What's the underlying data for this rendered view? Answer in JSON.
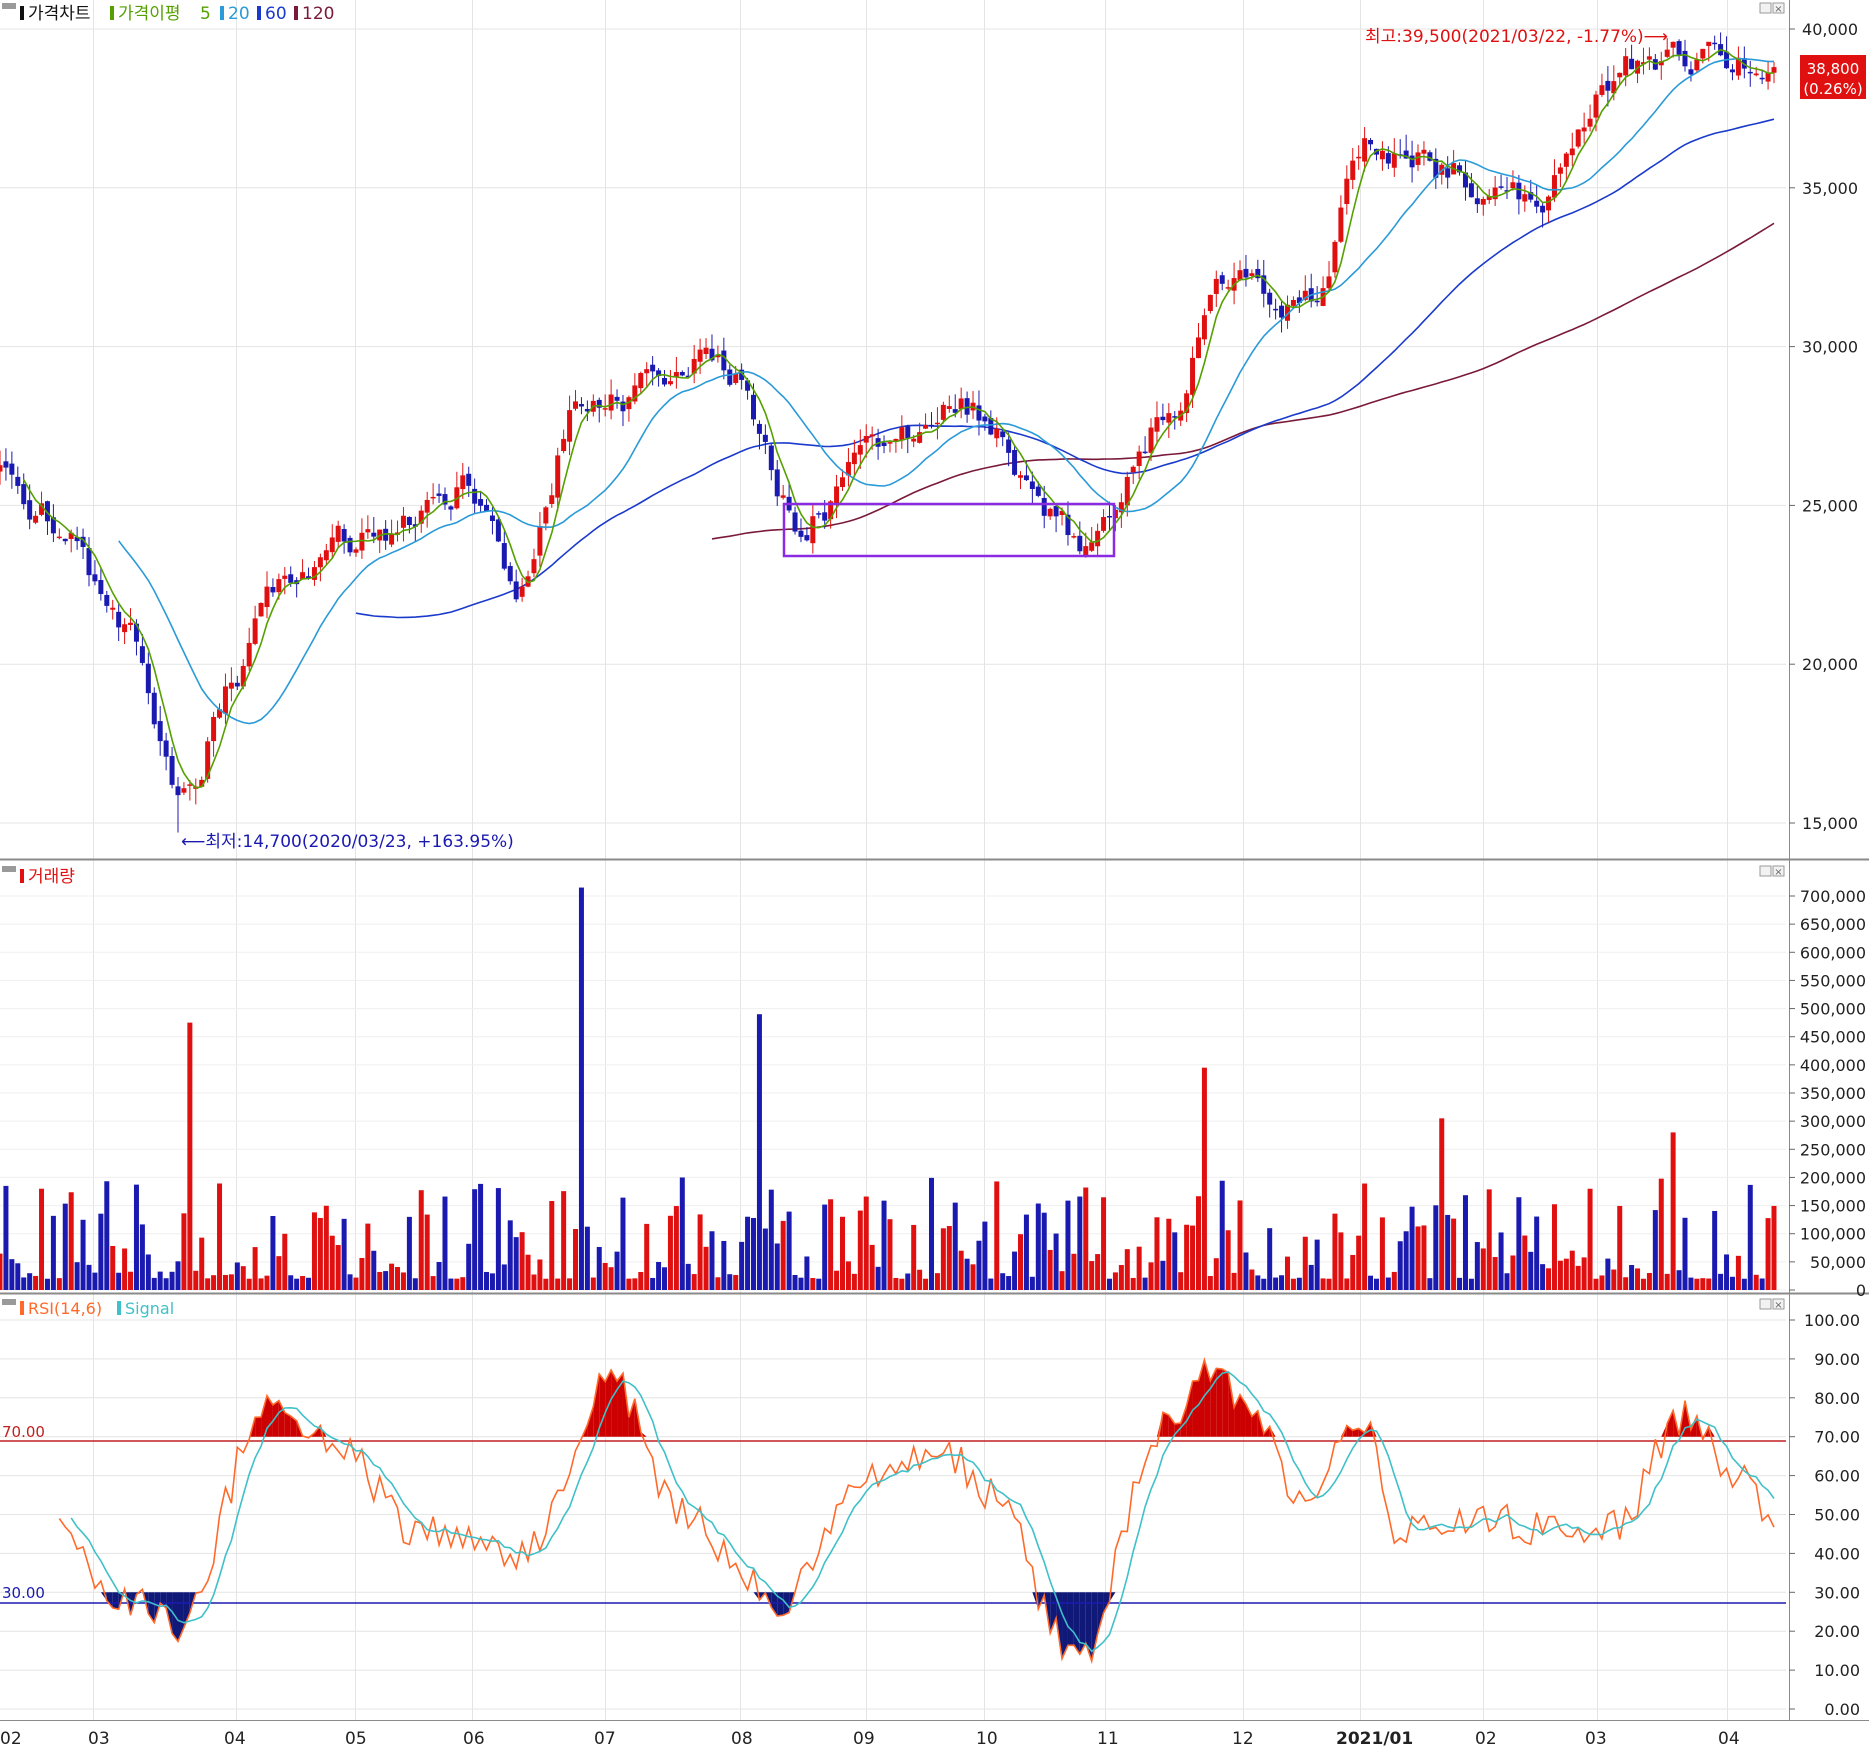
{
  "price_panel": {
    "legend": {
      "title": "가격차트",
      "ma_label": "가격이평",
      "ma_periods": [
        "5",
        "20",
        "60",
        "120"
      ]
    },
    "high_annotation": "최고:39,500(2021/03/22, -1.77%)⟶",
    "low_annotation": "⟵최저:14,700(2020/03/23, +163.95%)",
    "last_price": "38,800",
    "last_change": "(0.26%)",
    "y_ticks": [
      "40,000",
      "35,000",
      "30,000",
      "25,000",
      "20,000",
      "15,000"
    ]
  },
  "volume_panel": {
    "legend": "거래량",
    "y_ticks": [
      "700,000",
      "650,000",
      "600,000",
      "550,000",
      "500,000",
      "450,000",
      "400,000",
      "350,000",
      "300,000",
      "250,000",
      "200,000",
      "150,000",
      "100,000",
      "50,000",
      "0"
    ]
  },
  "rsi_panel": {
    "legend_rsi": "RSI(14,6)",
    "legend_signal": "Signal",
    "upper_label": "70.00",
    "lower_label": "30.00",
    "y_ticks": [
      "100.00",
      "90.00",
      "80.00",
      "70.00",
      "60.00",
      "50.00",
      "40.00",
      "30.00",
      "20.00",
      "10.00",
      "0.00"
    ]
  },
  "x_axis": {
    "ticks": [
      "02",
      "03",
      "04",
      "05",
      "06",
      "07",
      "08",
      "09",
      "10",
      "11",
      "12",
      "2021/01",
      "02",
      "03",
      "04"
    ]
  },
  "colors": {
    "up": "#e01010",
    "down": "#1a1ab0",
    "ma5": "#55a000",
    "ma20": "#2a9ad8",
    "ma60": "#1a3acc",
    "ma120": "#7a1a3a",
    "rsi": "#ff6a2a",
    "signal": "#40c0c8",
    "highlight_box": "#8a2be2"
  },
  "chart_data": [
    {
      "type": "candlestick",
      "title": "가격차트",
      "series": [
        {
          "name": "5"
        },
        {
          "name": "20"
        },
        {
          "name": "60"
        },
        {
          "name": "120"
        }
      ],
      "x": [
        "02",
        "03",
        "04",
        "05",
        "06",
        "07",
        "08",
        "09",
        "10",
        "11",
        "12",
        "2021/01",
        "02",
        "03",
        "04"
      ],
      "close_path": [
        {
          "x": "02",
          "y": 26000
        },
        {
          "x": "03",
          "y": 24500
        },
        {
          "x": "03",
          "y": 21500
        },
        {
          "x": "03",
          "y": 15500
        },
        {
          "x": "04",
          "y": 19000
        },
        {
          "x": "04",
          "y": 22500
        },
        {
          "x": "05",
          "y": 24000
        },
        {
          "x": "06",
          "y": 25500
        },
        {
          "x": "06",
          "y": 22500
        },
        {
          "x": "07",
          "y": 28000
        },
        {
          "x": "08",
          "y": 29500
        },
        {
          "x": "08",
          "y": 24500
        },
        {
          "x": "09",
          "y": 26500
        },
        {
          "x": "10",
          "y": 28000
        },
        {
          "x": "10",
          "y": 24000
        },
        {
          "x": "11",
          "y": 27500
        },
        {
          "x": "12",
          "y": 32500
        },
        {
          "x": "12",
          "y": 31500
        },
        {
          "x": "2021/01",
          "y": 36500
        },
        {
          "x": "02",
          "y": 35500
        },
        {
          "x": "03",
          "y": 34500
        },
        {
          "x": "03",
          "y": 39000
        },
        {
          "x": "04",
          "y": 38800
        }
      ],
      "high": 39500,
      "low": 14700,
      "last": 38800,
      "ylim": [
        14500,
        40500
      ]
    },
    {
      "type": "bar",
      "title": "거래량",
      "notable_values": [
        475000,
        715000,
        490000,
        395000,
        305000,
        280000
      ],
      "typical_range": [
        20000,
        200000
      ],
      "ylim": [
        0,
        720000
      ]
    },
    {
      "type": "line",
      "series": [
        {
          "name": "RSI(14,6)"
        },
        {
          "name": "Signal"
        }
      ],
      "levels": [
        70,
        30
      ],
      "peaks": [
        80,
        86,
        86,
        76,
        75
      ],
      "troughs": [
        22,
        25,
        11
      ],
      "last": 48,
      "ylim": [
        0,
        100
      ]
    }
  ]
}
